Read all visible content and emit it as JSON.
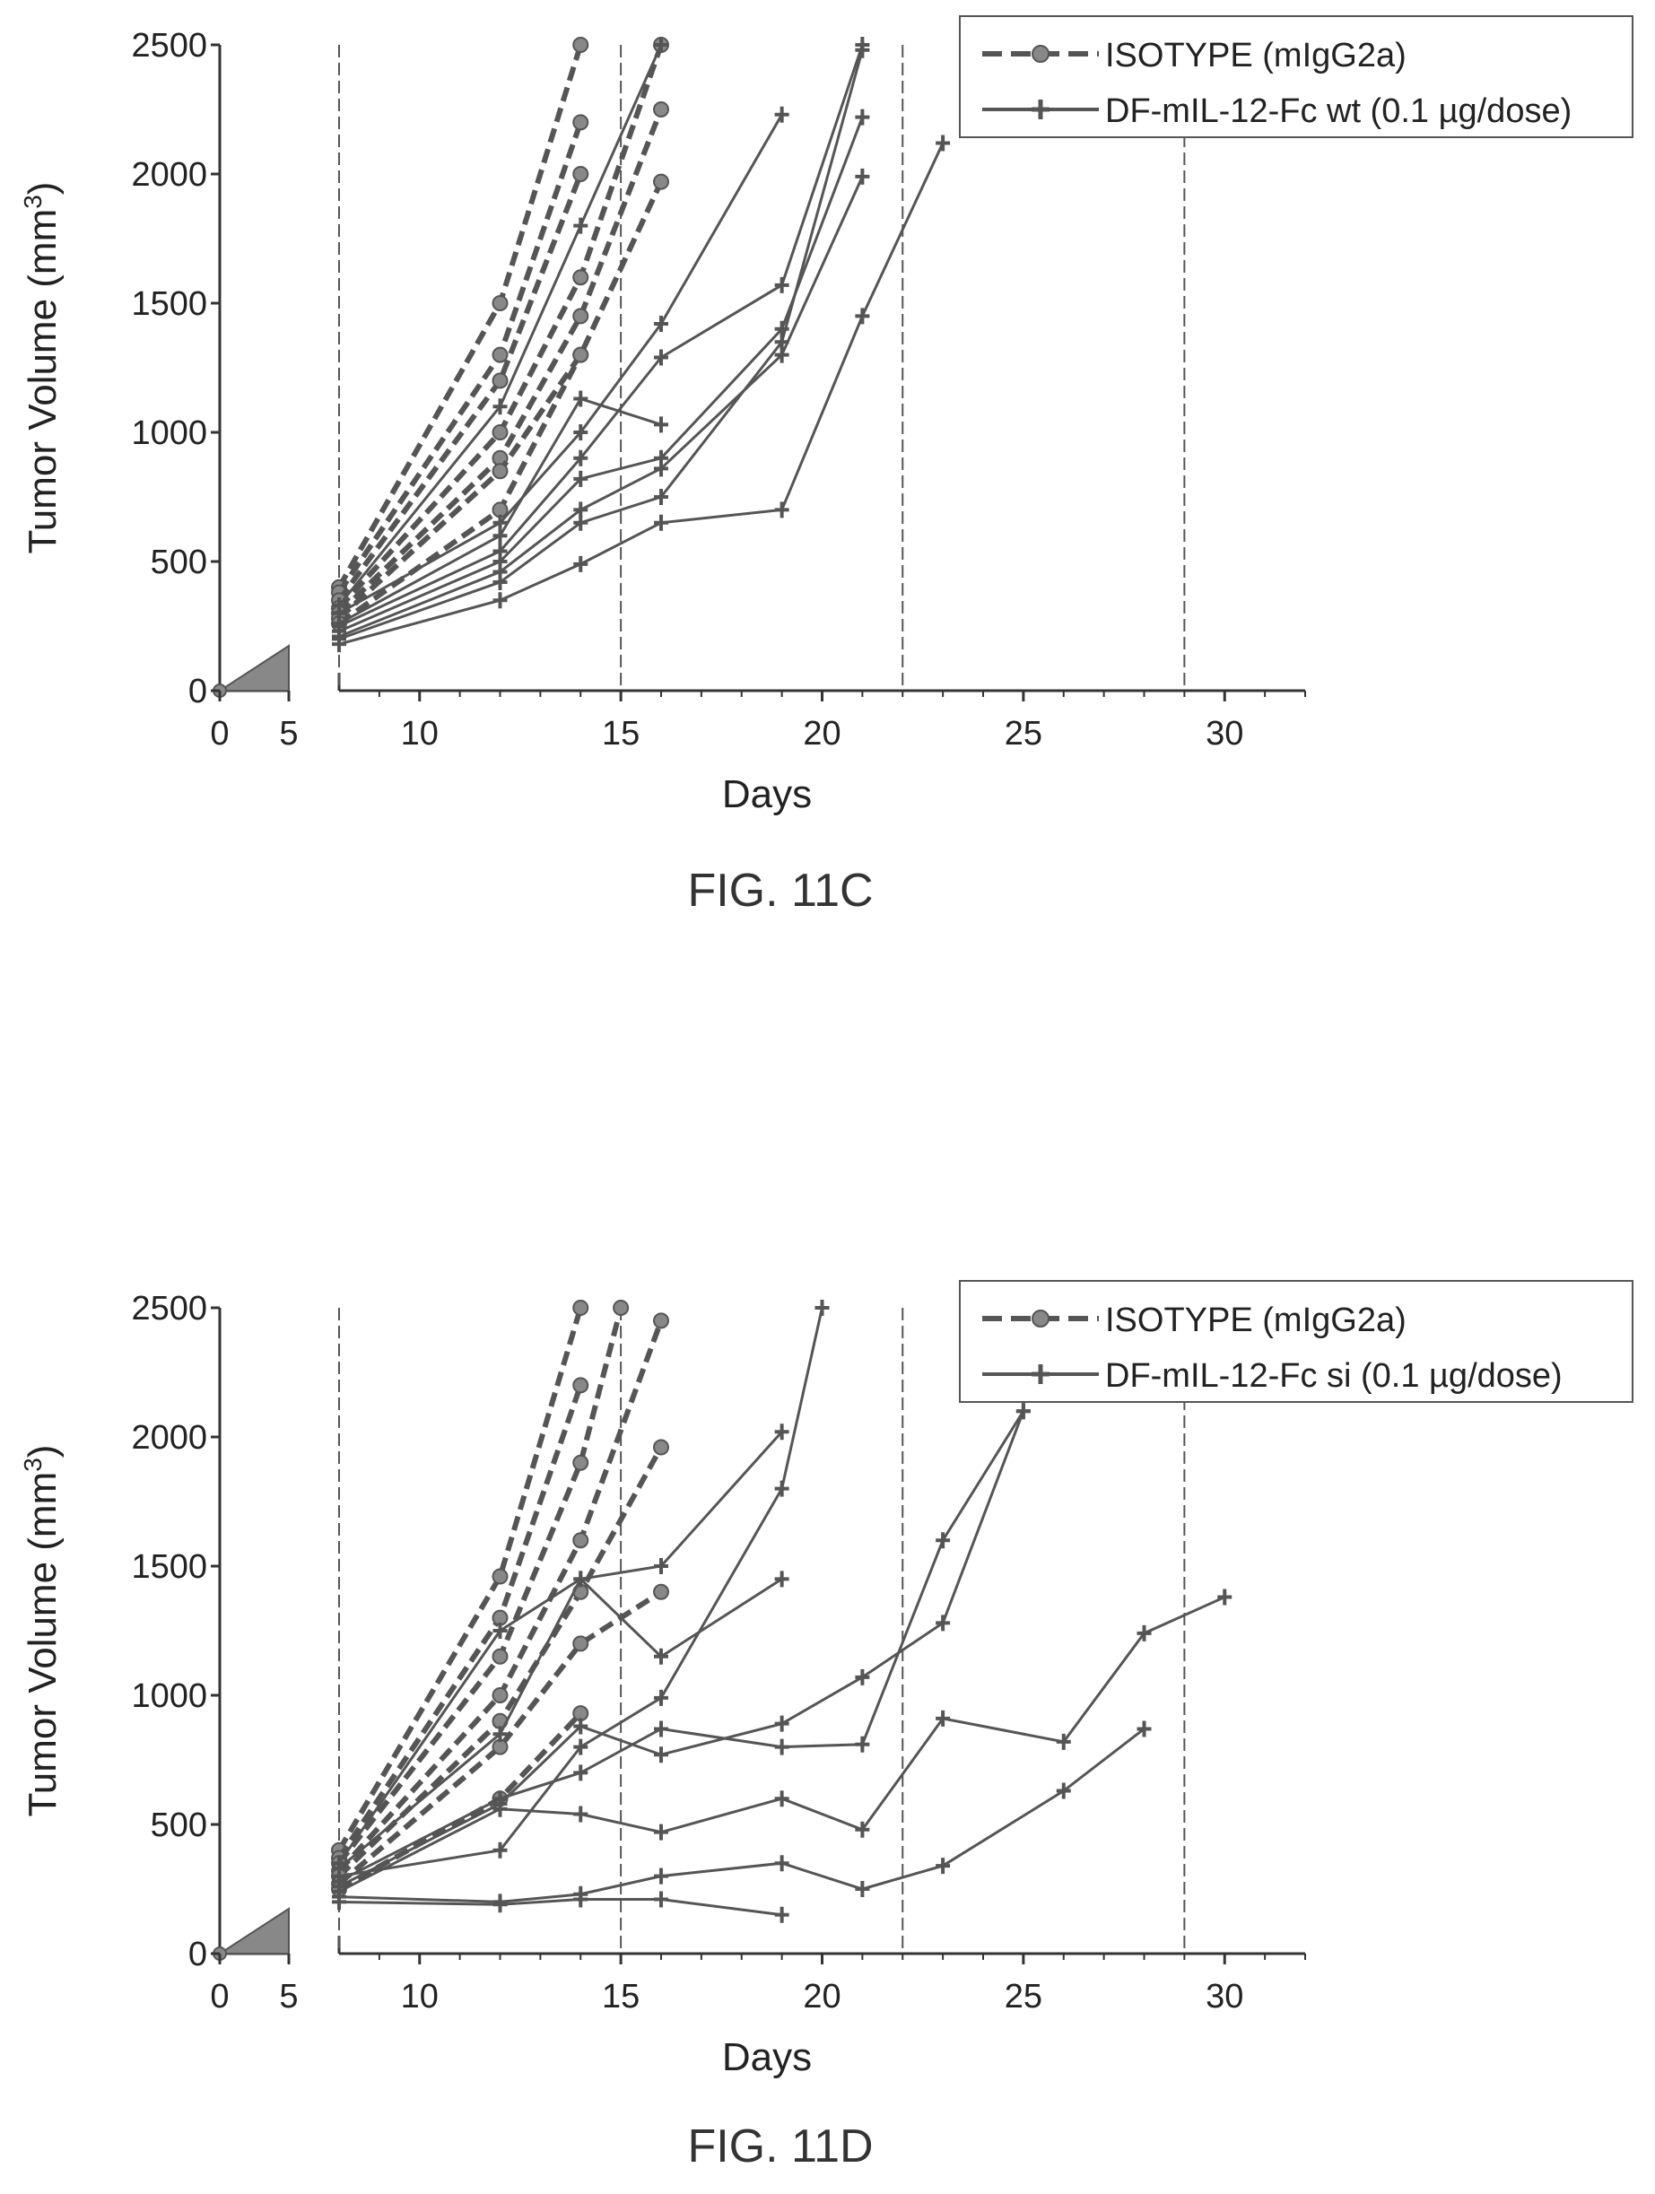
{
  "colors": {
    "ink": "#222222",
    "line": "#555555",
    "marker": "#888888",
    "axis": "#333333"
  },
  "chart_data": [
    {
      "type": "line",
      "caption": "FIG. 11C",
      "xlabel": "Days",
      "ylabel_main": "Tumor Volume (mm",
      "ylabel_sup": "3",
      "ylabel_tail": ")",
      "xlim": [
        0,
        32
      ],
      "ylim": [
        0,
        2500
      ],
      "x_ticks": [
        0,
        5,
        10,
        15,
        20,
        25,
        30
      ],
      "y_ticks": [
        0,
        500,
        1000,
        1500,
        2000,
        2500
      ],
      "dose_days": [
        8,
        15,
        22,
        29
      ],
      "legend": [
        {
          "label": "ISOTYPE (mIgG2a)",
          "style": "dashed",
          "marker": "circle"
        },
        {
          "label": "DF-mIL-12-Fc wt (0.1 µg/dose)",
          "style": "solid",
          "marker": "cross"
        }
      ],
      "series": [
        {
          "group": "ISOTYPE",
          "style": "dashed",
          "marker": "circle",
          "x": [
            8,
            12,
            14
          ],
          "y": [
            400,
            1500,
            2500
          ]
        },
        {
          "group": "ISOTYPE",
          "style": "dashed",
          "marker": "circle",
          "x": [
            8,
            12,
            14
          ],
          "y": [
            380,
            1300,
            2200
          ]
        },
        {
          "group": "ISOTYPE",
          "style": "dashed",
          "marker": "circle",
          "x": [
            8,
            12,
            14
          ],
          "y": [
            350,
            1200,
            2000
          ]
        },
        {
          "group": "ISOTYPE",
          "style": "dashed",
          "marker": "circle",
          "x": [
            8,
            12,
            14,
            16
          ],
          "y": [
            320,
            1000,
            1600,
            2500
          ]
        },
        {
          "group": "ISOTYPE",
          "style": "dashed",
          "marker": "circle",
          "x": [
            8,
            12,
            14,
            16
          ],
          "y": [
            300,
            900,
            1450,
            2250
          ]
        },
        {
          "group": "ISOTYPE",
          "style": "dashed",
          "marker": "circle",
          "x": [
            8,
            12,
            14,
            16
          ],
          "y": [
            280,
            850,
            1300,
            1970
          ]
        },
        {
          "group": "ISOTYPE",
          "style": "dashed",
          "marker": "circle",
          "x": [
            8,
            12,
            14
          ],
          "y": [
            260,
            700,
            1300
          ]
        },
        {
          "group": "DF-mIL-12-Fc wt",
          "style": "solid",
          "marker": "cross",
          "x": [
            8,
            12,
            14,
            16
          ],
          "y": [
            330,
            1100,
            1800,
            2500
          ]
        },
        {
          "group": "DF-mIL-12-Fc wt",
          "style": "solid",
          "marker": "cross",
          "x": [
            8,
            12,
            14,
            16,
            19
          ],
          "y": [
            300,
            650,
            1000,
            1420,
            2230
          ]
        },
        {
          "group": "DF-mIL-12-Fc wt",
          "style": "solid",
          "marker": "cross",
          "x": [
            8,
            12,
            14,
            16
          ],
          "y": [
            260,
            600,
            1130,
            1030
          ]
        },
        {
          "group": "DF-mIL-12-Fc wt",
          "style": "solid",
          "marker": "cross",
          "x": [
            8,
            12,
            14,
            16,
            19,
            21
          ],
          "y": [
            250,
            540,
            900,
            1290,
            1570,
            2500
          ]
        },
        {
          "group": "DF-mIL-12-Fc wt",
          "style": "solid",
          "marker": "cross",
          "x": [
            8,
            12,
            14,
            16,
            19,
            21
          ],
          "y": [
            230,
            500,
            820,
            900,
            1400,
            2220
          ]
        },
        {
          "group": "DF-mIL-12-Fc wt",
          "style": "solid",
          "marker": "cross",
          "x": [
            8,
            12,
            14,
            16,
            19,
            21
          ],
          "y": [
            210,
            460,
            700,
            860,
            1300,
            1990
          ]
        },
        {
          "group": "DF-mIL-12-Fc wt",
          "style": "solid",
          "marker": "cross",
          "x": [
            8,
            12,
            14,
            16,
            19,
            21
          ],
          "y": [
            200,
            420,
            650,
            750,
            1350,
            2480
          ]
        },
        {
          "group": "DF-mIL-12-Fc wt",
          "style": "solid",
          "marker": "cross",
          "x": [
            8,
            12,
            14,
            16,
            19,
            21,
            23
          ],
          "y": [
            180,
            350,
            490,
            650,
            700,
            1450,
            2120
          ]
        }
      ]
    },
    {
      "type": "line",
      "caption": "FIG. 11D",
      "xlabel": "Days",
      "ylabel_main": "Tumor Volume (mm",
      "ylabel_sup": "3",
      "ylabel_tail": ")",
      "xlim": [
        0,
        32
      ],
      "ylim": [
        0,
        2500
      ],
      "x_ticks": [
        0,
        5,
        10,
        15,
        20,
        25,
        30
      ],
      "y_ticks": [
        0,
        500,
        1000,
        1500,
        2000,
        2500
      ],
      "dose_days": [
        8,
        15,
        22,
        29
      ],
      "legend": [
        {
          "label": "ISOTYPE (mIgG2a)",
          "style": "dashed",
          "marker": "circle"
        },
        {
          "label": "DF-mIL-12-Fc si (0.1 µg/dose)",
          "style": "solid",
          "marker": "cross"
        }
      ],
      "series": [
        {
          "group": "ISOTYPE",
          "style": "dashed",
          "marker": "circle",
          "x": [
            8,
            12,
            14
          ],
          "y": [
            400,
            1460,
            2500
          ]
        },
        {
          "group": "ISOTYPE",
          "style": "dashed",
          "marker": "circle",
          "x": [
            8,
            12,
            14
          ],
          "y": [
            370,
            1300,
            2200
          ]
        },
        {
          "group": "ISOTYPE",
          "style": "dashed",
          "marker": "circle",
          "x": [
            8,
            12,
            14,
            15
          ],
          "y": [
            350,
            1150,
            1900,
            2500
          ]
        },
        {
          "group": "ISOTYPE",
          "style": "dashed",
          "marker": "circle",
          "x": [
            8,
            12,
            14,
            16
          ],
          "y": [
            320,
            1000,
            1600,
            2450
          ]
        },
        {
          "group": "ISOTYPE",
          "style": "dashed",
          "marker": "circle",
          "x": [
            8,
            12,
            14,
            16
          ],
          "y": [
            300,
            900,
            1400,
            1960
          ]
        },
        {
          "group": "ISOTYPE",
          "style": "dashed",
          "marker": "circle",
          "x": [
            8,
            12,
            14,
            16
          ],
          "y": [
            270,
            800,
            1200,
            1400
          ]
        },
        {
          "group": "ISOTYPE",
          "style": "dashed",
          "marker": "circle",
          "x": [
            8,
            12,
            14
          ],
          "y": [
            250,
            600,
            930
          ]
        },
        {
          "group": "DF-mIL-12-Fc si",
          "style": "solid",
          "marker": "cross",
          "x": [
            8,
            12,
            14,
            16,
            19
          ],
          "y": [
            350,
            1250,
            1450,
            1500,
            2020
          ]
        },
        {
          "group": "DF-mIL-12-Fc si",
          "style": "solid",
          "marker": "cross",
          "x": [
            8,
            12,
            14,
            16,
            19
          ],
          "y": [
            330,
            850,
            1450,
            1150,
            1450
          ]
        },
        {
          "group": "DF-mIL-12-Fc si",
          "style": "solid",
          "marker": "cross",
          "x": [
            8,
            12,
            14,
            16,
            19,
            20
          ],
          "y": [
            300,
            400,
            800,
            990,
            1800,
            2500
          ]
        },
        {
          "group": "DF-mIL-12-Fc si",
          "style": "solid",
          "marker": "cross",
          "x": [
            8,
            12,
            14,
            16,
            19,
            21,
            23,
            25
          ],
          "y": [
            280,
            600,
            700,
            870,
            800,
            810,
            1600,
            2100
          ]
        },
        {
          "group": "DF-mIL-12-Fc si",
          "style": "solid",
          "marker": "cross",
          "x": [
            8,
            12,
            14,
            16,
            19,
            21,
            23,
            25
          ],
          "y": [
            260,
            580,
            880,
            770,
            890,
            1070,
            1280,
            2100
          ]
        },
        {
          "group": "DF-mIL-12-Fc si",
          "style": "solid",
          "marker": "cross",
          "x": [
            8,
            12,
            14,
            16,
            19,
            21,
            23,
            26,
            28,
            30
          ],
          "y": [
            240,
            560,
            540,
            470,
            600,
            480,
            910,
            820,
            1240,
            1380
          ]
        },
        {
          "group": "DF-mIL-12-Fc si",
          "style": "solid",
          "marker": "cross",
          "x": [
            8,
            12,
            14,
            16,
            19,
            21,
            23,
            26,
            28
          ],
          "y": [
            220,
            200,
            230,
            300,
            350,
            250,
            340,
            630,
            870
          ]
        },
        {
          "group": "DF-mIL-12-Fc si",
          "style": "solid",
          "marker": "cross",
          "x": [
            8,
            12,
            14,
            16,
            19
          ],
          "y": [
            200,
            190,
            210,
            210,
            150
          ]
        }
      ]
    }
  ]
}
